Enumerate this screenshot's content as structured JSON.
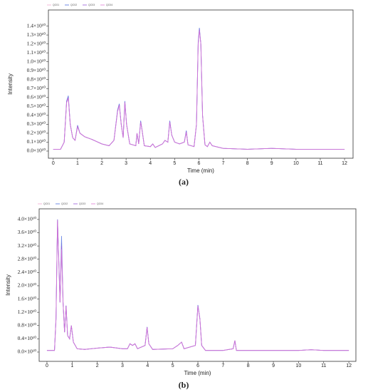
{
  "chart_data": [
    {
      "type": "line",
      "caption": "(a)",
      "x_label": "Time (min)",
      "y_label": "Intensity",
      "x": [
        0,
        0.3,
        0.45,
        0.55,
        0.62,
        0.7,
        0.8,
        0.9,
        1.0,
        1.1,
        1.3,
        1.6,
        2.0,
        2.3,
        2.5,
        2.65,
        2.72,
        2.8,
        2.88,
        2.95,
        3.02,
        3.15,
        3.4,
        3.45,
        3.52,
        3.6,
        3.65,
        3.75,
        4.0,
        4.1,
        4.2,
        4.5,
        4.6,
        4.72,
        4.8,
        4.88,
        5.0,
        5.2,
        5.4,
        5.48,
        5.55,
        5.8,
        5.9,
        5.97,
        6.02,
        6.08,
        6.15,
        6.25,
        6.35,
        6.45,
        6.55,
        7,
        8,
        9,
        10,
        11,
        12
      ],
      "series": [
        {
          "name": "QC01",
          "color": "#f2a7cf",
          "values": [
            200000000.0,
            200000000.0,
            1000000000.0,
            5500000000.0,
            6000000000.0,
            3000000000.0,
            1500000000.0,
            1200000000.0,
            2800000000.0,
            2000000000.0,
            1600000000.0,
            1300000000.0,
            800000000.0,
            600000000.0,
            1200000000.0,
            4500000000.0,
            5200000000.0,
            3000000000.0,
            1500000000.0,
            5500000000.0,
            3000000000.0,
            800000000.0,
            600000000.0,
            2000000000.0,
            800000000.0,
            3300000000.0,
            2500000000.0,
            600000000.0,
            500000000.0,
            800000000.0,
            400000000.0,
            800000000.0,
            1200000000.0,
            1000000000.0,
            3300000000.0,
            1800000000.0,
            1000000000.0,
            800000000.0,
            1000000000.0,
            2200000000.0,
            700000000.0,
            500000000.0,
            3000000000.0,
            12000000000.0,
            13700000000.0,
            12000000000.0,
            4000000000.0,
            700000000.0,
            500000000.0,
            1000000000.0,
            600000000.0,
            300000000.0,
            200000000.0,
            300000000.0,
            200000000.0,
            200000000.0,
            200000000.0
          ]
        },
        {
          "name": "QC02",
          "color": "#4f6fe0",
          "values": [
            200000000.0,
            200000000.0,
            1000000000.0,
            5600000000.0,
            6200000000.0,
            3000000000.0,
            1500000000.0,
            1200000000.0,
            2900000000.0,
            2000000000.0,
            1600000000.0,
            1300000000.0,
            800000000.0,
            600000000.0,
            1200000000.0,
            4600000000.0,
            5300000000.0,
            3000000000.0,
            1500000000.0,
            5600000000.0,
            3000000000.0,
            800000000.0,
            600000000.0,
            2000000000.0,
            800000000.0,
            3400000000.0,
            2500000000.0,
            600000000.0,
            500000000.0,
            800000000.0,
            400000000.0,
            800000000.0,
            1200000000.0,
            1000000000.0,
            3400000000.0,
            1800000000.0,
            1000000000.0,
            800000000.0,
            1000000000.0,
            2300000000.0,
            700000000.0,
            500000000.0,
            3000000000.0,
            12200000000.0,
            13800000000.0,
            12000000000.0,
            4000000000.0,
            700000000.0,
            500000000.0,
            1000000000.0,
            600000000.0,
            300000000.0,
            200000000.0,
            300000000.0,
            200000000.0,
            200000000.0,
            200000000.0
          ]
        },
        {
          "name": "QC03",
          "color": "#9a5ad8",
          "values": [
            200000000.0,
            200000000.0,
            1000000000.0,
            5500000000.0,
            6000000000.0,
            3000000000.0,
            1500000000.0,
            1200000000.0,
            2800000000.0,
            2000000000.0,
            1600000000.0,
            1300000000.0,
            800000000.0,
            600000000.0,
            1200000000.0,
            4500000000.0,
            5200000000.0,
            3000000000.0,
            1500000000.0,
            5500000000.0,
            3000000000.0,
            800000000.0,
            600000000.0,
            2000000000.0,
            800000000.0,
            3300000000.0,
            2500000000.0,
            600000000.0,
            500000000.0,
            800000000.0,
            400000000.0,
            800000000.0,
            1200000000.0,
            1000000000.0,
            3300000000.0,
            1800000000.0,
            1000000000.0,
            800000000.0,
            1000000000.0,
            2200000000.0,
            700000000.0,
            500000000.0,
            3000000000.0,
            12000000000.0,
            13600000000.0,
            12000000000.0,
            4000000000.0,
            700000000.0,
            500000000.0,
            1000000000.0,
            600000000.0,
            300000000.0,
            200000000.0,
            300000000.0,
            200000000.0,
            200000000.0,
            200000000.0
          ]
        },
        {
          "name": "QC04",
          "color": "#e07ad6",
          "values": [
            200000000.0,
            200000000.0,
            1000000000.0,
            5400000000.0,
            5900000000.0,
            3000000000.0,
            1500000000.0,
            1200000000.0,
            2700000000.0,
            2000000000.0,
            1600000000.0,
            1300000000.0,
            800000000.0,
            600000000.0,
            1200000000.0,
            4400000000.0,
            5100000000.0,
            3000000000.0,
            1500000000.0,
            5400000000.0,
            3000000000.0,
            800000000.0,
            600000000.0,
            2000000000.0,
            800000000.0,
            3200000000.0,
            2500000000.0,
            600000000.0,
            500000000.0,
            800000000.0,
            400000000.0,
            800000000.0,
            1200000000.0,
            1000000000.0,
            3200000000.0,
            1800000000.0,
            1000000000.0,
            800000000.0,
            1000000000.0,
            2100000000.0,
            700000000.0,
            500000000.0,
            3000000000.0,
            11900000000.0,
            13500000000.0,
            12000000000.0,
            4000000000.0,
            700000000.0,
            500000000.0,
            1000000000.0,
            600000000.0,
            300000000.0,
            200000000.0,
            300000000.0,
            200000000.0,
            200000000.0,
            200000000.0
          ]
        }
      ],
      "xlim": [
        -0.2,
        12.35
      ],
      "xticks": [
        0,
        1,
        2,
        3,
        4,
        5,
        6,
        7,
        8,
        9,
        10,
        11,
        12
      ],
      "ylim": [
        -800000000.0,
        15800000000.0
      ],
      "yticks": [
        {
          "value": 0,
          "label": "0.0×10¹⁰"
        },
        {
          "value": 1000000000.0,
          "label": "0.1×10¹⁰"
        },
        {
          "value": 2000000000.0,
          "label": "0.2×10¹⁰"
        },
        {
          "value": 3000000000.0,
          "label": "0.3×10¹⁰"
        },
        {
          "value": 4000000000.0,
          "label": "0.4×10¹⁰"
        },
        {
          "value": 5000000000.0,
          "label": "0.5×10¹⁰"
        },
        {
          "value": 6000000000.0,
          "label": "0.6×10¹⁰"
        },
        {
          "value": 7000000000.0,
          "label": "0.7×10¹⁰"
        },
        {
          "value": 8000000000.0,
          "label": "0.8×10¹⁰"
        },
        {
          "value": 9000000000.0,
          "label": "0.9×10¹⁰"
        },
        {
          "value": 10000000000.0,
          "label": "1.0×10¹⁰"
        },
        {
          "value": 11000000000.0,
          "label": "1.1×10¹⁰"
        },
        {
          "value": 12000000000.0,
          "label": "1.2×10¹⁰"
        },
        {
          "value": 13000000000.0,
          "label": "1.3×10¹⁰"
        },
        {
          "value": 14000000000.0,
          "label": "1.4×10¹⁰"
        }
      ],
      "grid": false,
      "legend": "top-left"
    },
    {
      "type": "line",
      "caption": "(b)",
      "x_label": "Time (min)",
      "y_label": "Intensity",
      "x": [
        0,
        0.3,
        0.36,
        0.42,
        0.48,
        0.52,
        0.58,
        0.64,
        0.7,
        0.76,
        0.82,
        0.9,
        0.97,
        1.05,
        1.2,
        1.5,
        2.0,
        2.5,
        3.0,
        3.2,
        3.3,
        3.4,
        3.5,
        3.6,
        3.9,
        3.98,
        4.05,
        4.2,
        5.0,
        5.2,
        5.35,
        5.45,
        5.9,
        6.0,
        6.08,
        6.15,
        6.3,
        7.0,
        7.4,
        7.47,
        7.53,
        8,
        9,
        10,
        10.5,
        11,
        12
      ],
      "series": [
        {
          "name": "QC01",
          "color": "#f2a7cf",
          "values": [
            500000000.0,
            500000000.0,
            10000000000.0,
            40000000000.0,
            25000000000.0,
            15000000000.0,
            33000000000.0,
            15000000000.0,
            6000000000.0,
            14000000000.0,
            5000000000.0,
            4000000000.0,
            8000000000.0,
            3000000000.0,
            1000000000.0,
            800000000.0,
            1200000000.0,
            1500000000.0,
            1000000000.0,
            1000000000.0,
            2500000000.0,
            2000000000.0,
            2500000000.0,
            1000000000.0,
            2000000000.0,
            7500000000.0,
            2500000000.0,
            800000000.0,
            1000000000.0,
            2000000000.0,
            3000000000.0,
            1000000000.0,
            2000000000.0,
            14000000000.0,
            10000000000.0,
            2000000000.0,
            500000000.0,
            500000000.0,
            1000000000.0,
            3500000000.0,
            500000000.0,
            500000000.0,
            500000000.0,
            500000000.0,
            700000000.0,
            500000000.0,
            500000000.0
          ]
        },
        {
          "name": "QC02",
          "color": "#4f6fe0",
          "values": [
            500000000.0,
            500000000.0,
            10000000000.0,
            40000000000.0,
            26000000000.0,
            15000000000.0,
            35000000000.0,
            15000000000.0,
            6000000000.0,
            14000000000.0,
            5000000000.0,
            4000000000.0,
            8000000000.0,
            3000000000.0,
            1000000000.0,
            800000000.0,
            1200000000.0,
            1500000000.0,
            1000000000.0,
            1000000000.0,
            2500000000.0,
            2000000000.0,
            2500000000.0,
            1000000000.0,
            2000000000.0,
            7600000000.0,
            2500000000.0,
            800000000.0,
            1000000000.0,
            2000000000.0,
            3000000000.0,
            1000000000.0,
            2000000000.0,
            14200000000.0,
            10000000000.0,
            2000000000.0,
            500000000.0,
            500000000.0,
            1000000000.0,
            3500000000.0,
            500000000.0,
            500000000.0,
            500000000.0,
            500000000.0,
            700000000.0,
            500000000.0,
            500000000.0
          ]
        },
        {
          "name": "QC03",
          "color": "#9a5ad8",
          "values": [
            500000000.0,
            500000000.0,
            10000000000.0,
            39500000000.0,
            25000000000.0,
            15000000000.0,
            32000000000.0,
            15000000000.0,
            6000000000.0,
            14000000000.0,
            5000000000.0,
            4000000000.0,
            8000000000.0,
            3000000000.0,
            1000000000.0,
            800000000.0,
            1200000000.0,
            1500000000.0,
            1000000000.0,
            1000000000.0,
            2500000000.0,
            2000000000.0,
            2500000000.0,
            1000000000.0,
            2000000000.0,
            7500000000.0,
            2500000000.0,
            800000000.0,
            1000000000.0,
            2000000000.0,
            3000000000.0,
            1000000000.0,
            2000000000.0,
            14000000000.0,
            10000000000.0,
            2000000000.0,
            500000000.0,
            500000000.0,
            1000000000.0,
            3400000000.0,
            500000000.0,
            500000000.0,
            500000000.0,
            500000000.0,
            700000000.0,
            500000000.0,
            500000000.0
          ]
        },
        {
          "name": "QC04",
          "color": "#e07ad6",
          "values": [
            500000000.0,
            500000000.0,
            10000000000.0,
            39800000000.0,
            25000000000.0,
            15000000000.0,
            31000000000.0,
            15000000000.0,
            6000000000.0,
            13800000000.0,
            5000000000.0,
            4000000000.0,
            8000000000.0,
            3000000000.0,
            1000000000.0,
            800000000.0,
            1200000000.0,
            1500000000.0,
            1000000000.0,
            1000000000.0,
            2500000000.0,
            2000000000.0,
            2500000000.0,
            1000000000.0,
            2000000000.0,
            7400000000.0,
            2500000000.0,
            800000000.0,
            1000000000.0,
            2000000000.0,
            3000000000.0,
            1000000000.0,
            2000000000.0,
            13800000000.0,
            10000000000.0,
            2000000000.0,
            500000000.0,
            500000000.0,
            1000000000.0,
            3500000000.0,
            500000000.0,
            500000000.0,
            500000000.0,
            500000000.0,
            700000000.0,
            500000000.0,
            500000000.0
          ]
        }
      ],
      "xlim": [
        -0.31,
        12.28
      ],
      "xticks": [
        0,
        1,
        2,
        3,
        4,
        5,
        6,
        7,
        8,
        9,
        10,
        11,
        12
      ],
      "ylim": [
        -2800000000.0,
        43200000000.0
      ],
      "yticks": [
        {
          "value": 0,
          "label": "0.0×10¹⁰"
        },
        {
          "value": 4000000000.0,
          "label": "0.4×10¹⁰"
        },
        {
          "value": 8000000000.0,
          "label": "0.8×10¹⁰"
        },
        {
          "value": 12000000000.0,
          "label": "1.2×10¹⁰"
        },
        {
          "value": 16000000000.0,
          "label": "1.6×10¹⁰"
        },
        {
          "value": 20000000000.0,
          "label": "2.0×10¹⁰"
        },
        {
          "value": 24000000000.0,
          "label": "2.4×10¹⁰"
        },
        {
          "value": 28000000000.0,
          "label": "2.8×10¹⁰"
        },
        {
          "value": 32000000000.0,
          "label": "3.2×10¹⁰"
        },
        {
          "value": 36000000000.0,
          "label": "3.6×10¹⁰"
        },
        {
          "value": 40000000000.0,
          "label": "4.0×10¹⁰"
        }
      ],
      "grid": false,
      "legend": "top-left"
    }
  ]
}
